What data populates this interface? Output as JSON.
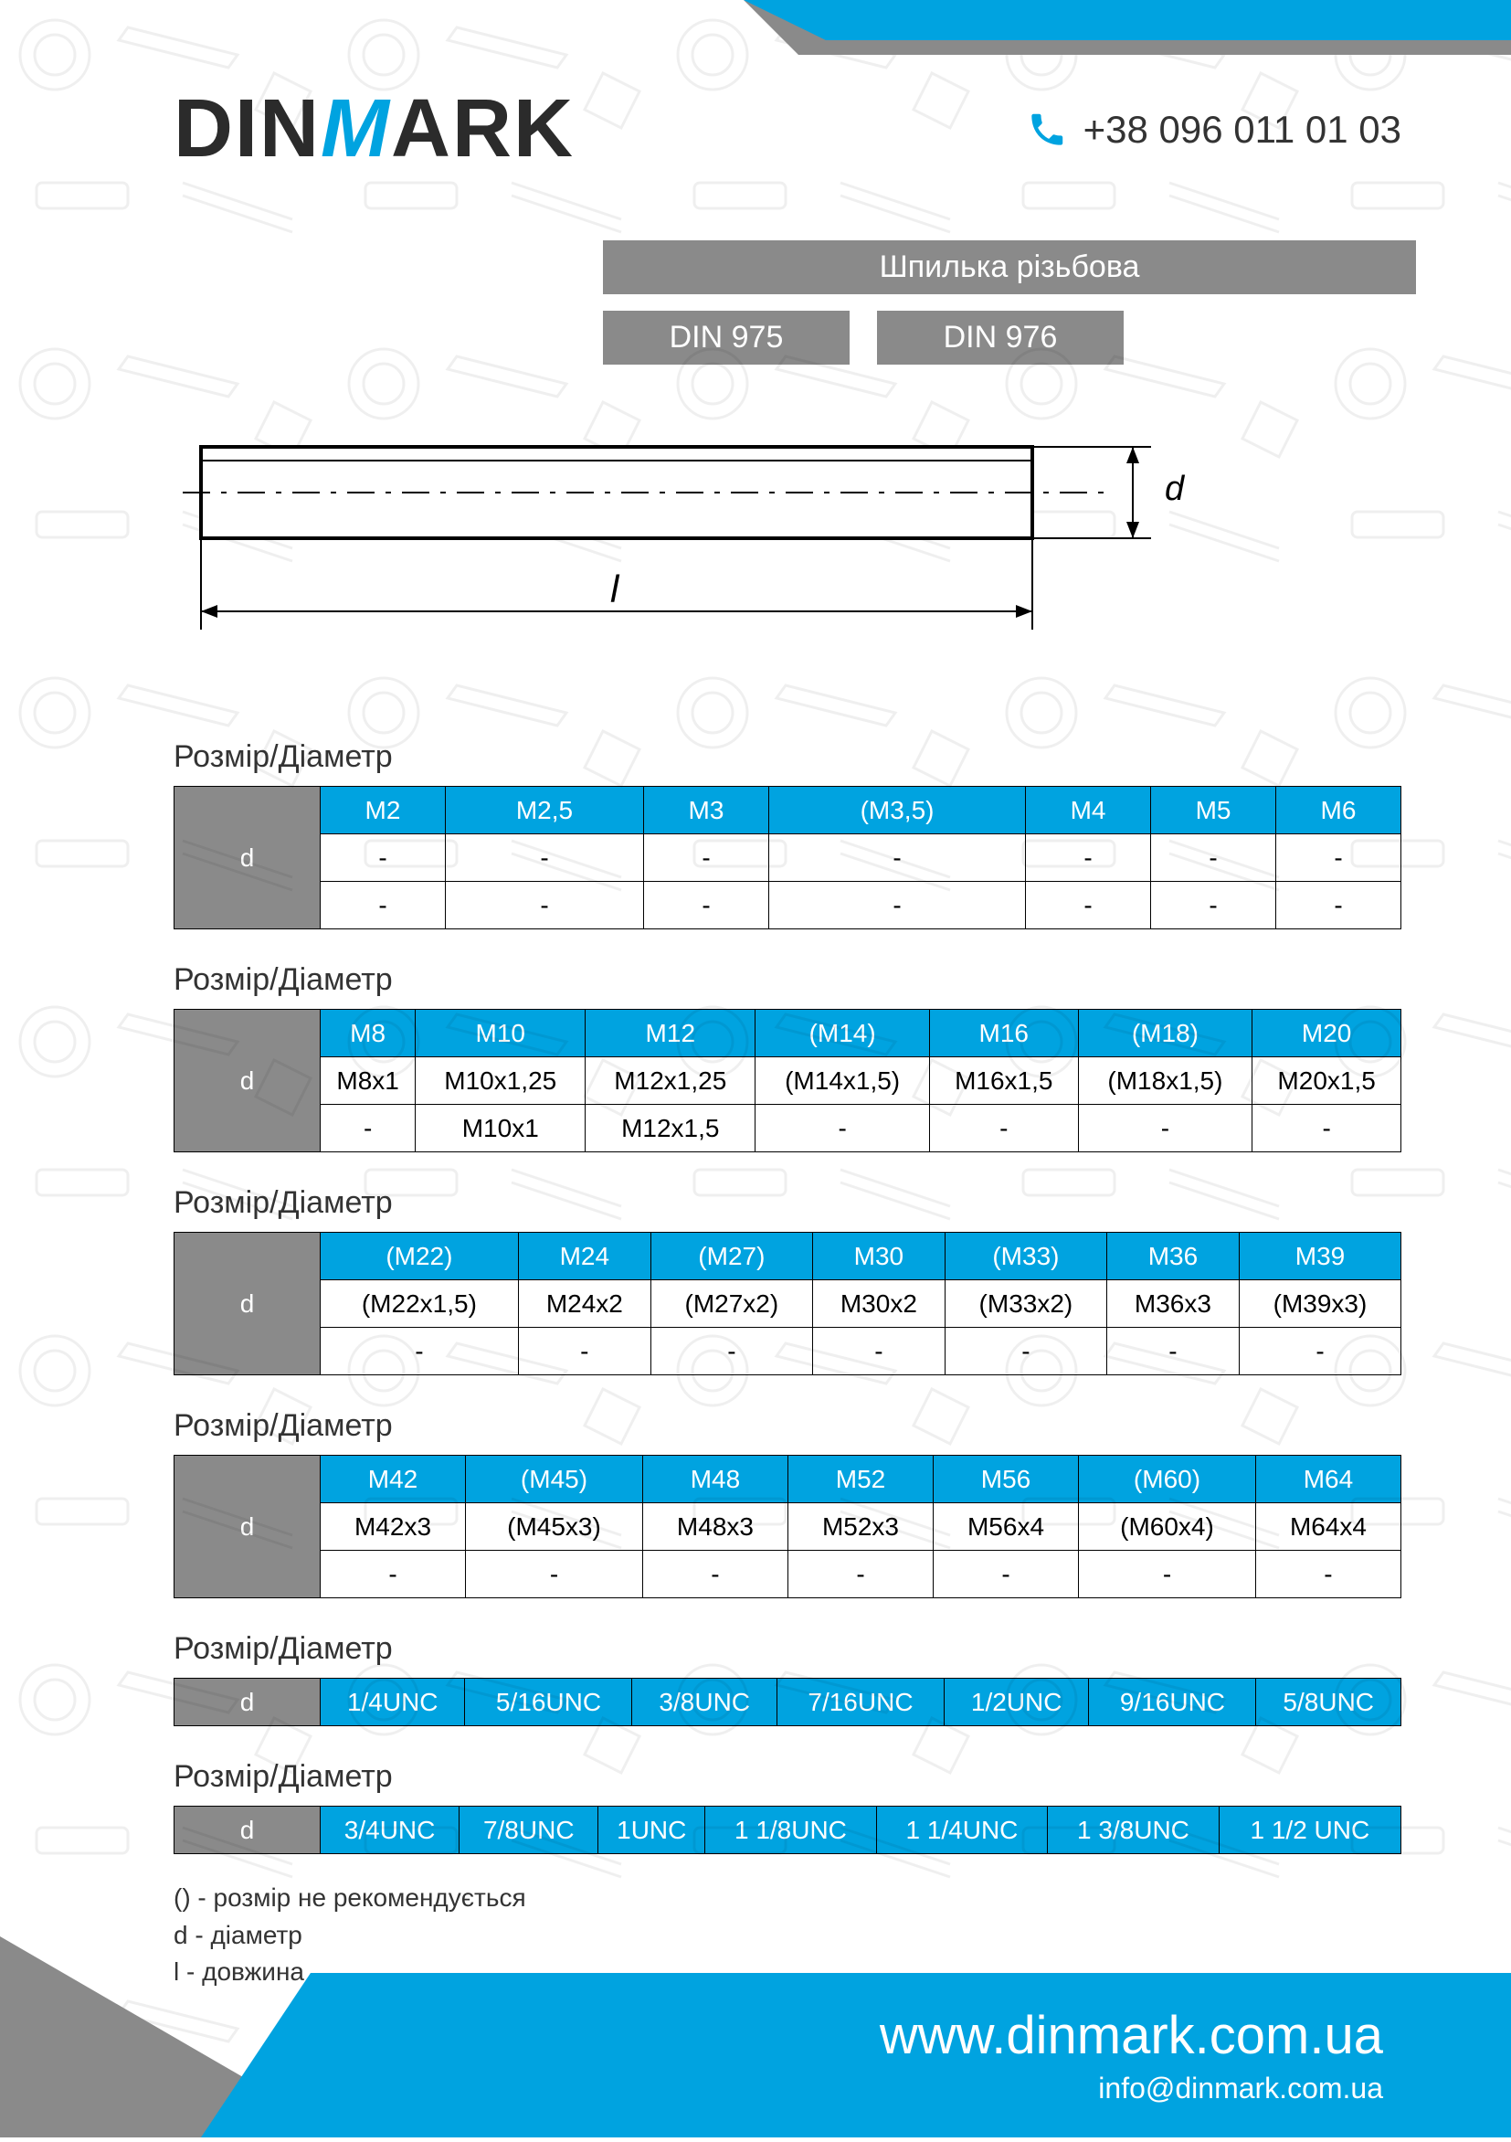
{
  "brand": {
    "pre": "DIN",
    "m": "M",
    "post": "ARK"
  },
  "phone": "+38 096 011 01 03",
  "product_title": "Шпилька різьбова",
  "din_labels": [
    "DIN 975",
    "DIN 976"
  ],
  "diagram": {
    "d_label": "d",
    "l_label": "l"
  },
  "section_title": "Розмір/Діаметр",
  "colors": {
    "accent": "#00a3e0",
    "grey": "#8a8a8a",
    "text": "#333333",
    "bg": "#ffffff",
    "border": "#000000"
  },
  "text_fontsize": 28,
  "title_fontsize": 34,
  "tables": [
    {
      "headers": [
        "M2",
        "M2,5",
        "M3",
        "(M3,5)",
        "M4",
        "M5",
        "M6"
      ],
      "rows": [
        [
          "-",
          "-",
          "-",
          "-",
          "-",
          "-",
          "-"
        ],
        [
          "-",
          "-",
          "-",
          "-",
          "-",
          "-",
          "-"
        ]
      ]
    },
    {
      "headers": [
        "M8",
        "M10",
        "M12",
        "(M14)",
        "M16",
        "(M18)",
        "M20"
      ],
      "rows": [
        [
          "M8x1",
          "M10x1,25",
          "M12x1,25",
          "(M14x1,5)",
          "M16x1,5",
          "(M18x1,5)",
          "M20x1,5"
        ],
        [
          "-",
          "M10x1",
          "M12x1,5",
          "-",
          "-",
          "-",
          "-"
        ]
      ]
    },
    {
      "headers": [
        "(M22)",
        "M24",
        "(M27)",
        "M30",
        "(M33)",
        "M36",
        "M39"
      ],
      "rows": [
        [
          "(M22x1,5)",
          "M24x2",
          "(M27x2)",
          "M30x2",
          "(M33x2)",
          "M36x3",
          "(M39x3)"
        ],
        [
          "-",
          "-",
          "-",
          "-",
          "-",
          "-",
          "-"
        ]
      ]
    },
    {
      "headers": [
        "M42",
        "(M45)",
        "M48",
        "M52",
        "M56",
        "(M60)",
        "M64"
      ],
      "rows": [
        [
          "M42x3",
          "(M45x3)",
          "M48x3",
          "M52x3",
          "M56x4",
          "(M60x4)",
          "M64x4"
        ],
        [
          "-",
          "-",
          "-",
          "-",
          "-",
          "-",
          "-"
        ]
      ]
    }
  ],
  "unc_tables": [
    {
      "headers": [
        "1/4UNC",
        "5/16UNC",
        "3/8UNC",
        "7/16UNC",
        "1/2UNC",
        "9/16UNC",
        "5/8UNC"
      ]
    },
    {
      "headers": [
        "3/4UNC",
        "7/8UNC",
        "1UNC",
        "1 1/8UNC",
        "1 1/4UNC",
        "1 3/8UNC",
        "1 1/2 UNC"
      ]
    }
  ],
  "legend": [
    "() - розмір не рекомендується",
    "d - діаметр",
    "l - довжина"
  ],
  "footer": {
    "url": "www.dinmark.com.ua",
    "email": "info@dinmark.com.ua"
  }
}
